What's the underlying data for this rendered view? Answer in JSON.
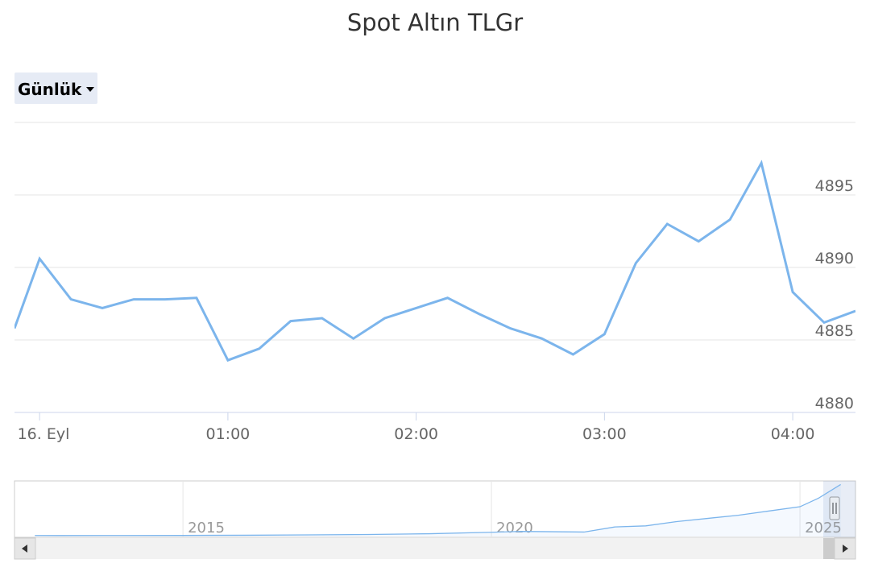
{
  "chart_data": {
    "type": "line",
    "title": "Spot Altın TLGr",
    "range_selector": "Günlük",
    "color": "#7cb5ec",
    "x": [
      -8,
      0,
      10,
      20,
      30,
      40,
      50,
      60,
      70,
      80,
      90,
      100,
      110,
      120,
      130,
      140,
      150,
      160,
      170,
      180,
      190,
      200,
      210,
      220,
      230,
      240,
      250,
      260
    ],
    "values": [
      4885.8,
      4890.6,
      4887.8,
      4887.2,
      4887.8,
      4887.8,
      4887.9,
      4883.6,
      4884.4,
      4886.3,
      4886.5,
      4885.1,
      4886.5,
      4887.2,
      4887.9,
      4886.8,
      4885.8,
      4885.1,
      4884.0,
      4885.4,
      4890.3,
      4893.0,
      4891.8,
      4893.3,
      4897.2,
      4888.3,
      4886.2,
      4887.0
    ],
    "xlim": [
      -8,
      260
    ],
    "xticks": [
      {
        "value": 0,
        "label": "16. Eyl"
      },
      {
        "value": 60,
        "label": "01:00"
      },
      {
        "value": 120,
        "label": "02:00"
      },
      {
        "value": 180,
        "label": "03:00"
      },
      {
        "value": 240,
        "label": "04:00"
      }
    ],
    "ylim": [
      4880,
      4900
    ],
    "yticks": [
      4880,
      4885,
      4890,
      4895
    ],
    "grid": true,
    "navigator": {
      "x": [
        2012.6,
        2013,
        2014,
        2015,
        2016,
        2017,
        2018,
        2019,
        2020,
        2020.5,
        2021,
        2021.5,
        2022,
        2022.5,
        2023,
        2023.5,
        2024,
        2024.5,
        2025,
        2025.3,
        2025.66
      ],
      "values": [
        95,
        90,
        95,
        100,
        120,
        150,
        190,
        260,
        400,
        480,
        450,
        420,
        900,
        1000,
        1400,
        1700,
        2000,
        2400,
        2800,
        3600,
        4890
      ],
      "xlim": [
        2012.27,
        2025.9
      ],
      "ylim": [
        0,
        5000
      ],
      "xticks": [
        2015,
        2020,
        2025
      ]
    }
  }
}
